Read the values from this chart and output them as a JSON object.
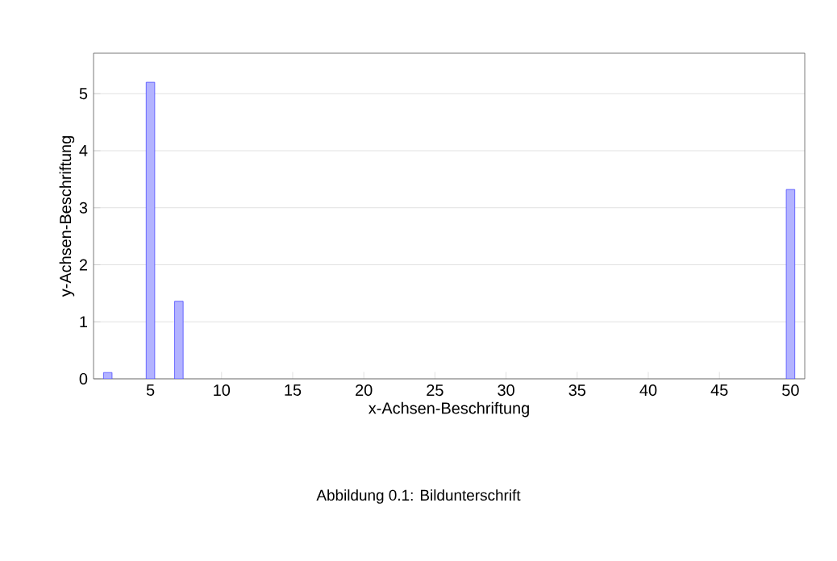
{
  "chart_data": {
    "type": "bar",
    "xlabel": "x-Achsen-Beschriftung",
    "ylabel": "y-Achsen-Beschriftung",
    "x": [
      2,
      5,
      7,
      50
    ],
    "values": [
      0.11,
      5.2,
      1.36,
      3.32
    ],
    "color": "#b3b3ff",
    "xlim": [
      1,
      51
    ],
    "xticks": [
      5,
      10,
      15,
      20,
      25,
      30,
      35,
      40,
      45,
      50
    ],
    "ylim": [
      0,
      5.71
    ],
    "yticks": [
      0,
      1,
      2,
      3,
      4,
      5
    ],
    "grid": "y",
    "annotations": [
      "Abbildung 0.1: Bildunterschrift"
    ]
  }
}
